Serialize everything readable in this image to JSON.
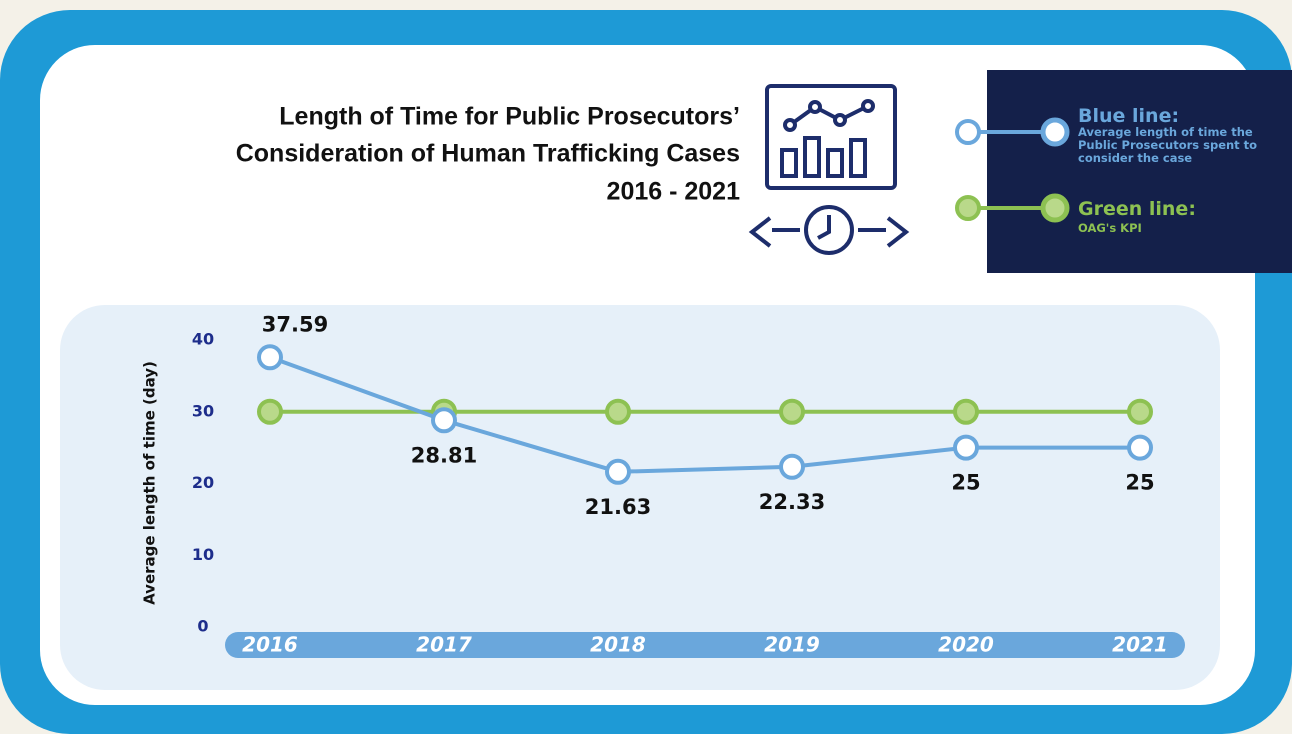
{
  "chart_data": {
    "type": "line",
    "title": [
      "Length of Time for Public Prosecutors’",
      "Consideration of Human Trafficking Cases",
      "2016 - 2021"
    ],
    "y_label": "Average length of time (day)",
    "categories": [
      "2016",
      "2017",
      "2018",
      "2019",
      "2020",
      "2021"
    ],
    "series": [
      {
        "name": "Blue line:",
        "description": "Average length of time the Public Prosecutors spent to consider the case",
        "color": "#6aa7dc",
        "values": [
          37.59,
          28.81,
          21.63,
          22.33,
          25,
          25
        ],
        "show_labels": true
      },
      {
        "name": "Green line:",
        "description": "OAG's KPI",
        "color": "#8dc152",
        "values": [
          30,
          30,
          30,
          30,
          30,
          30
        ],
        "show_labels": false
      }
    ],
    "ylim": [
      0,
      40
    ],
    "yticks": [
      0,
      10,
      20,
      30,
      40
    ],
    "grid": false,
    "legend": "top-right"
  }
}
